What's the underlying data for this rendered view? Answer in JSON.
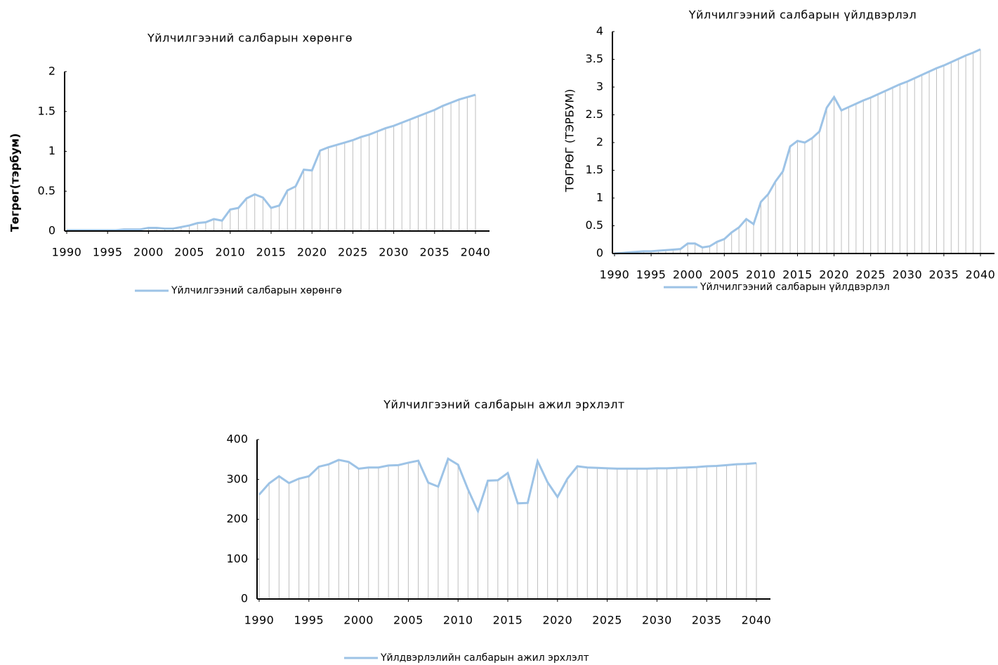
{
  "chart_data": [
    {
      "type": "line",
      "title": "Үйлчилгээний салбарын хөрөнгө",
      "y_label": "Төгрөг(тэрбум)",
      "x": [
        1990,
        1991,
        1992,
        1993,
        1994,
        1995,
        1996,
        1997,
        1998,
        1999,
        2000,
        2001,
        2002,
        2003,
        2004,
        2005,
        2006,
        2007,
        2008,
        2009,
        2010,
        2011,
        2012,
        2013,
        2014,
        2015,
        2016,
        2017,
        2018,
        2019,
        2020,
        2021,
        2022,
        2023,
        2024,
        2025,
        2026,
        2027,
        2028,
        2029,
        2030,
        2031,
        2032,
        2033,
        2034,
        2035,
        2036,
        2037,
        2038,
        2039,
        2040
      ],
      "series": [
        {
          "name": "Үйлчилгээний салбарын хөрөнгө",
          "color": "#9dc3e6",
          "values": [
            0.01,
            0.01,
            0.01,
            0.01,
            0.01,
            0.01,
            0.01,
            0.02,
            0.02,
            0.02,
            0.04,
            0.04,
            0.03,
            0.03,
            0.05,
            0.07,
            0.1,
            0.11,
            0.15,
            0.13,
            0.27,
            0.29,
            0.41,
            0.46,
            0.42,
            0.29,
            0.32,
            0.51,
            0.56,
            0.77,
            0.76,
            1.01,
            1.05,
            1.08,
            1.11,
            1.14,
            1.18,
            1.21,
            1.25,
            1.29,
            1.32,
            1.36,
            1.4,
            1.44,
            1.48,
            1.52,
            1.57,
            1.61,
            1.65,
            1.68,
            1.71
          ]
        }
      ],
      "xlim": [
        1990,
        2040
      ],
      "xticks": [
        1990,
        1995,
        2000,
        2005,
        2010,
        2015,
        2020,
        2025,
        2030,
        2035,
        2040
      ],
      "ylim": [
        0,
        2
      ],
      "yticks": [
        0,
        0.5,
        1,
        1.5,
        2
      ],
      "drop_lines": true,
      "legend": "bottom"
    },
    {
      "type": "line",
      "title": "Үйлчилгээний салбарын үйлдвэрлэл",
      "y_label": "ТӨГРӨГ (ТЭРБУМ)",
      "x": [
        1990,
        1991,
        1992,
        1993,
        1994,
        1995,
        1996,
        1997,
        1998,
        1999,
        2000,
        2001,
        2002,
        2003,
        2004,
        2005,
        2006,
        2007,
        2008,
        2009,
        2010,
        2011,
        2012,
        2013,
        2014,
        2015,
        2016,
        2017,
        2018,
        2019,
        2020,
        2021,
        2022,
        2023,
        2024,
        2025,
        2026,
        2027,
        2028,
        2029,
        2030,
        2031,
        2032,
        2033,
        2034,
        2035,
        2036,
        2037,
        2038,
        2039,
        2040
      ],
      "series": [
        {
          "name": "Үйлчилгээний салбарын үйлдвэрлэл",
          "color": "#9dc3e6",
          "values": [
            0,
            0.01,
            0.02,
            0.03,
            0.04,
            0.04,
            0.05,
            0.06,
            0.07,
            0.08,
            0.18,
            0.18,
            0.11,
            0.13,
            0.21,
            0.26,
            0.38,
            0.47,
            0.62,
            0.53,
            0.93,
            1.07,
            1.3,
            1.48,
            1.93,
            2.03,
            2.0,
            2.08,
            2.2,
            2.63,
            2.82,
            2.58,
            2.64,
            2.7,
            2.76,
            2.81,
            2.87,
            2.93,
            2.99,
            3.05,
            3.1,
            3.16,
            3.22,
            3.28,
            3.34,
            3.39,
            3.45,
            3.51,
            3.57,
            3.62,
            3.68
          ]
        }
      ],
      "xlim": [
        1990,
        2040
      ],
      "xticks": [
        1990,
        1995,
        2000,
        2005,
        2010,
        2015,
        2020,
        2025,
        2030,
        2035,
        2040
      ],
      "ylim": [
        0,
        4
      ],
      "yticks": [
        0,
        0.5,
        1,
        1.5,
        2,
        2.5,
        3,
        3.5,
        4
      ],
      "drop_lines": true,
      "legend": "bottom"
    },
    {
      "type": "line",
      "title": "Үйлчилгээний салбарын ажил эрхлэлт",
      "x": [
        1990,
        1991,
        1992,
        1993,
        1994,
        1995,
        1996,
        1997,
        1998,
        1999,
        2000,
        2001,
        2002,
        2003,
        2004,
        2005,
        2006,
        2007,
        2008,
        2009,
        2010,
        2011,
        2012,
        2013,
        2014,
        2015,
        2016,
        2017,
        2018,
        2019,
        2020,
        2021,
        2022,
        2023,
        2024,
        2025,
        2026,
        2027,
        2028,
        2029,
        2030,
        2031,
        2032,
        2033,
        2034,
        2035,
        2036,
        2037,
        2038,
        2039,
        2040
      ],
      "series": [
        {
          "name": "Үйлдвэрлэлийн салбарын ажил эрхлэлт",
          "color": "#9dc3e6",
          "values": [
            262,
            290,
            308,
            291,
            302,
            308,
            332,
            338,
            349,
            344,
            327,
            330,
            330,
            335,
            336,
            342,
            347,
            292,
            282,
            352,
            337,
            275,
            220,
            297,
            298,
            316,
            240,
            241,
            346,
            293,
            256,
            302,
            333,
            330,
            329,
            328,
            327,
            327,
            327,
            327,
            328,
            328,
            329,
            330,
            331,
            333,
            334,
            336,
            338,
            339,
            341
          ]
        }
      ],
      "xlim": [
        1990,
        2040
      ],
      "xticks": [
        1990,
        1995,
        2000,
        2005,
        2010,
        2015,
        2020,
        2025,
        2030,
        2035,
        2040
      ],
      "ylim": [
        0,
        400
      ],
      "yticks": [
        0,
        100,
        200,
        300,
        400
      ],
      "drop_lines": true,
      "legend": "bottom"
    }
  ]
}
